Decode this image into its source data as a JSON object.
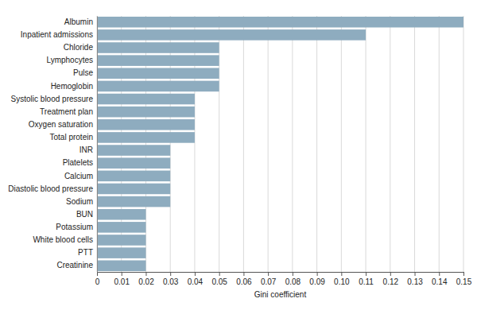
{
  "chart_data": {
    "type": "bar",
    "orientation": "horizontal",
    "xlabel": "Gini coefficient",
    "categories": [
      "Albumin",
      "Inpatient admissions",
      "Chloride",
      "Lymphocytes",
      "Pulse",
      "Hemoglobin",
      "Systolic blood pressure",
      "Treatment plan",
      "Oxygen saturation",
      "Total protein",
      "INR",
      "Platelets",
      "Calcium",
      "Diastolic blood pressure",
      "Sodium",
      "BUN",
      "Potassium",
      "White blood cells",
      "PTT",
      "Creatinine"
    ],
    "values": [
      0.15,
      0.11,
      0.05,
      0.05,
      0.05,
      0.05,
      0.04,
      0.04,
      0.04,
      0.04,
      0.03,
      0.03,
      0.03,
      0.03,
      0.03,
      0.02,
      0.02,
      0.02,
      0.02,
      0.02
    ],
    "color": "#8eacbf",
    "xlim": [
      0,
      0.15
    ],
    "xticks": [
      0,
      0.01,
      0.02,
      0.03,
      0.04,
      0.05,
      0.06,
      0.07,
      0.08,
      0.09,
      {
        "value": 0.1,
        "label": "0.10"
      },
      0.11,
      0.12,
      0.13,
      0.14,
      0.15
    ],
    "grid": true
  }
}
